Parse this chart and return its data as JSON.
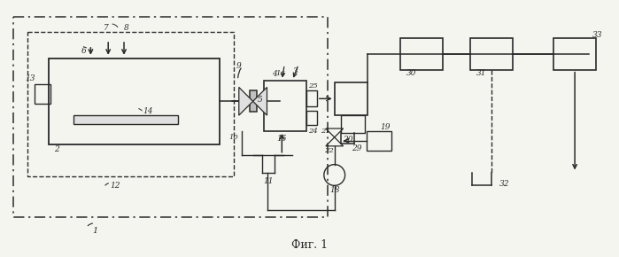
{
  "title": "Фиг. 1",
  "bg_color": "#f5f5f0",
  "fig_width": 6.99,
  "fig_height": 2.9,
  "dpi": 100,
  "lc": "#2a2a2a"
}
